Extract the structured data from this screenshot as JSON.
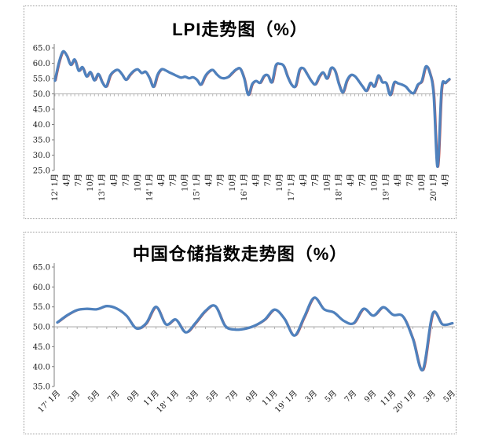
{
  "page": {
    "background": "#ffffff"
  },
  "chart_data": [
    {
      "id": "lpi",
      "type": "line",
      "title": "LPI走势图（%）",
      "x_start": "2012-01",
      "x_end": "2020-05",
      "x_tick_step": 3,
      "x_label_rotation": -90,
      "x_tick_labels": [
        "12' 1月",
        "4月",
        "7月",
        "10月",
        "13' 1月",
        "4月",
        "7月",
        "10月",
        "14' 1月",
        "4月",
        "7月",
        "10月",
        "15' 1月",
        "4月",
        "7月",
        "10月",
        "16' 1月",
        "4月",
        "7月",
        "10月",
        "17' 1月",
        "4月",
        "7月",
        "10月",
        "18' 1月",
        "4月",
        "7月",
        "10月",
        "19' 1月",
        "4月",
        "7月",
        "10月",
        "20' 1月",
        "4月"
      ],
      "y_tick_labels": [
        "65.0",
        "60.0",
        "55.0",
        "50.0",
        "45.0",
        "40.0",
        "35.0",
        "30.0",
        "25.0"
      ],
      "y_ticks": [
        65,
        60,
        55,
        50,
        45,
        40,
        35,
        30,
        25
      ],
      "ylim": [
        25,
        65
      ],
      "baseline": 50,
      "grid": false,
      "legend": "none",
      "line_color": "#4F81BD",
      "shadow_line_color": "#C0504D",
      "axis_color": "#808080",
      "tick_color": "#999999",
      "label_color": "#1a1a1a",
      "series": [
        {
          "name": "LPI",
          "values": [
            54.3,
            60.2,
            63.8,
            62.5,
            59.5,
            61.2,
            57.6,
            58.7,
            55.7,
            57.1,
            54.4,
            56.5,
            53.8,
            52.4,
            56.0,
            57.4,
            57.8,
            56.4,
            54.6,
            56.2,
            57.5,
            58.0,
            56.8,
            57.2,
            55.1,
            52.3,
            56.2,
            58.0,
            57.7,
            57.0,
            56.4,
            55.8,
            55.3,
            55.6,
            55.1,
            55.4,
            54.6,
            53.0,
            55.6,
            57.2,
            57.8,
            56.4,
            55.3,
            55.1,
            55.6,
            56.9,
            58.0,
            58.2,
            54.9,
            49.7,
            53.2,
            54.2,
            53.6,
            55.8,
            56.0,
            53.8,
            59.3,
            59.8,
            59.1,
            55.6,
            53.0,
            52.6,
            57.8,
            58.3,
            56.3,
            54.2,
            53.1,
            55.6,
            57.0,
            55.0,
            58.4,
            57.6,
            53.2,
            50.5,
            54.3,
            56.1,
            55.8,
            54.2,
            52.4,
            51.0,
            53.6,
            52.4,
            56.0,
            53.8,
            53.5,
            49.6,
            53.7,
            53.4,
            53.0,
            52.3,
            50.8,
            50.3,
            53.0,
            54.2,
            58.9,
            57.0,
            49.9,
            26.2,
            51.5,
            53.6,
            54.8
          ]
        }
      ]
    },
    {
      "id": "warehouse",
      "type": "line",
      "title": "中国仓储指数走势图（%）",
      "x_start": "2017-01",
      "x_end": "2020-05",
      "x_tick_step": 2,
      "x_label_rotation": -45,
      "x_tick_labels": [
        "17' 1月",
        "3月",
        "5月",
        "7月",
        "9月",
        "11月",
        "18' 1月",
        "3月",
        "5月",
        "7月",
        "9月",
        "11月",
        "19' 1月",
        "3月",
        "5月",
        "7月",
        "9月",
        "11月",
        "20' 1月",
        "3月",
        "5月"
      ],
      "y_tick_labels": [
        "65.0",
        "60.0",
        "55.0",
        "50.0",
        "45.0",
        "40.0",
        "35.0"
      ],
      "y_ticks": [
        65,
        60,
        55,
        50,
        45,
        40,
        35
      ],
      "ylim": [
        35,
        65
      ],
      "baseline": 50,
      "grid": false,
      "legend": "none",
      "line_color": "#4F81BD",
      "shadow_line_color": "#C0504D",
      "axis_color": "#808080",
      "tick_color": "#999999",
      "label_color": "#1a1a1a",
      "series": [
        {
          "name": "中国仓储指数",
          "values": [
            51.1,
            52.9,
            54.2,
            54.5,
            54.4,
            55.2,
            54.6,
            52.8,
            49.6,
            50.9,
            55.0,
            50.6,
            51.8,
            48.6,
            51.0,
            54.0,
            55.2,
            50.2,
            49.3,
            49.5,
            50.3,
            51.8,
            54.3,
            52.0,
            47.8,
            52.5,
            57.3,
            54.4,
            53.6,
            51.5,
            50.9,
            54.5,
            52.8,
            54.9,
            53.0,
            52.6,
            47.0,
            39.2,
            53.3,
            50.6,
            50.9
          ]
        }
      ]
    }
  ]
}
